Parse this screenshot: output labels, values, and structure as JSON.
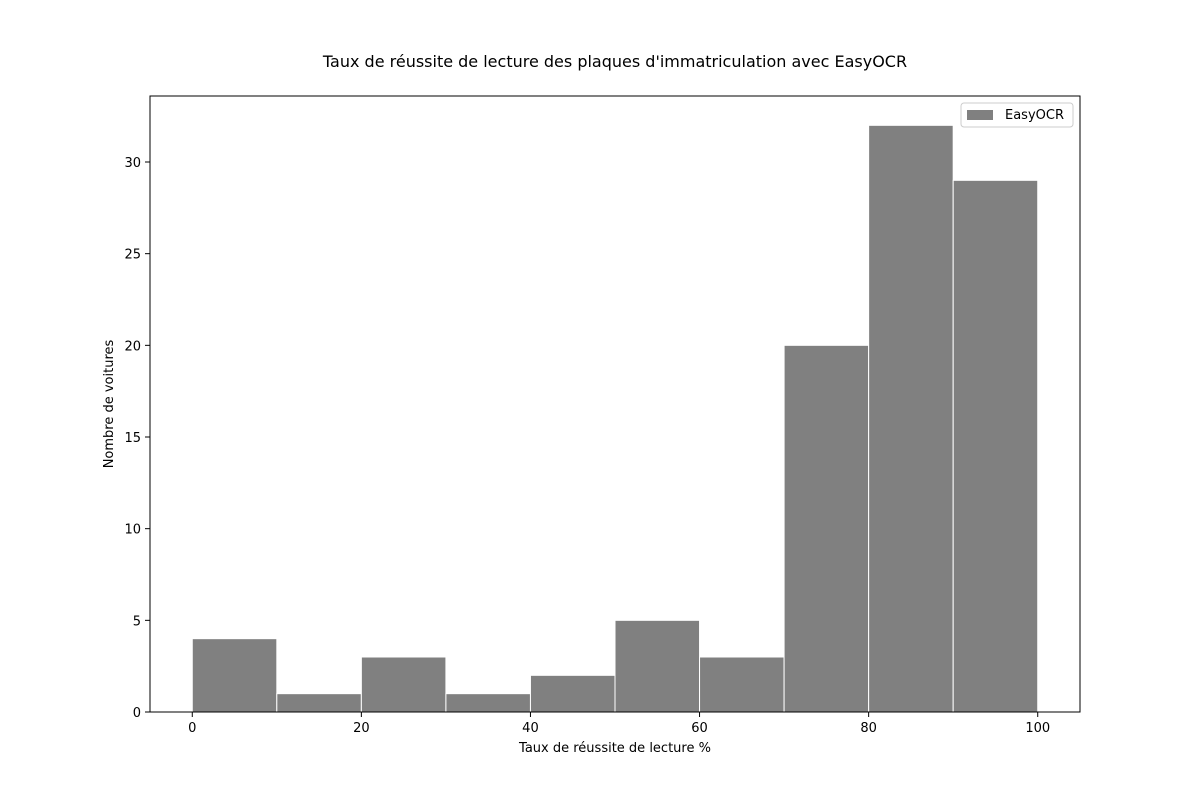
{
  "chart_data": {
    "type": "bar",
    "title": "Taux de réussite de lecture des plaques d'immatriculation avec EasyOCR",
    "xlabel": "Taux de réussite de lecture %",
    "ylabel": "Nombre de voitures",
    "bin_edges": [
      0,
      10,
      20,
      30,
      40,
      50,
      60,
      70,
      80,
      90,
      100
    ],
    "series": [
      {
        "name": "EasyOCR",
        "values": [
          4,
          1,
          3,
          1,
          2,
          5,
          3,
          20,
          32,
          29
        ]
      }
    ],
    "xlim": [
      -5,
      105
    ],
    "ylim": [
      0,
      33.6
    ],
    "x_ticks": [
      "0",
      "20",
      "40",
      "60",
      "80",
      "100"
    ],
    "y_ticks": [
      "0",
      "5",
      "10",
      "15",
      "20",
      "25",
      "30"
    ],
    "grid": false,
    "legend_position": "top-right",
    "colors": {
      "bar": "#808080",
      "bar_edge": "#ffffff",
      "axes": "#000000"
    }
  }
}
